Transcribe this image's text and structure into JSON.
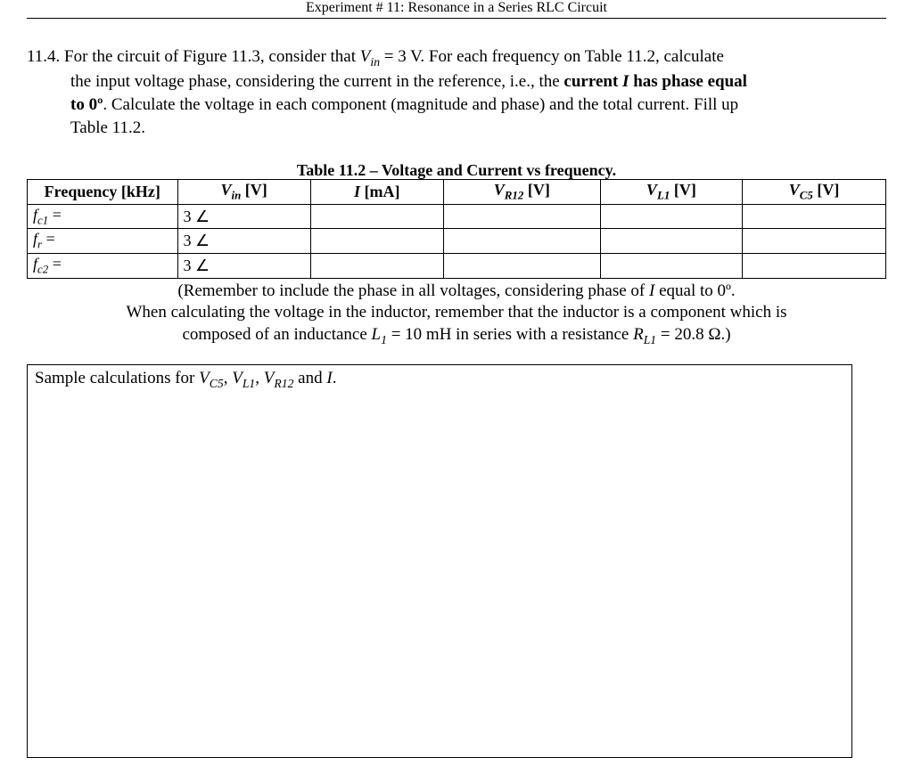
{
  "header": "Experiment # 11: Resonance in a Series RLC Circuit",
  "problem": {
    "number": "11.4.",
    "line1": "For the circuit of Figure 11.3, consider that ",
    "vin_eq": " = 3 V. For each frequency on Table 11.2, calculate",
    "line2": "the input voltage phase, considering the current in the reference, i.e., the ",
    "bold1": "current ",
    "ibold": "I",
    "bold2": " has phase equal",
    "line3a": "to 0º",
    "line3b": ". Calculate the voltage in each component (magnitude and phase) and the total current. Fill up",
    "line4": "Table 11.2."
  },
  "table": {
    "caption": "Table 11.2 – Voltage and Current vs frequency.",
    "headers": {
      "freq": "Frequency [kHz]",
      "vin_pre": "V",
      "vin_sub": "in",
      "vin_post": " [V]",
      "i_pre": "I",
      "i_post": " [mA]",
      "vr12_pre": "V",
      "vr12_sub": "R12",
      "vr12_post": " [V]",
      "vl1_pre": "V",
      "vl1_sub": "L1",
      "vl1_post": " [V]",
      "vc5_pre": "V",
      "vc5_sub": "C5",
      "vc5_post": " [V]"
    },
    "rows": [
      {
        "f_pre": "f",
        "f_sub": "c1",
        "f_post": " =",
        "vin": "3 ∠"
      },
      {
        "f_pre": "f",
        "f_sub": "r",
        "f_post": " =",
        "vin": "3 ∠"
      },
      {
        "f_pre": "f",
        "f_sub": "c2",
        "f_post": " =",
        "vin": "3 ∠"
      }
    ]
  },
  "note": {
    "l1a": "(Remember to include the phase in all voltages, considering phase of ",
    "l1b": " equal to 0º.",
    "l2": "When calculating the voltage in the inductor, remember that the inductor is a component which is",
    "l3a": "composed of an inductance ",
    "l3_L": "L",
    "l3_Lsub": "1",
    "l3b": " = 10 mH in series with a resistance ",
    "l3_R": "R",
    "l3_Rsub": "L1",
    "l3c": " = 20.8 Ω.)"
  },
  "calcbox": {
    "pre": "Sample calculations for ",
    "v1": "V",
    "s1": "C5",
    "c1": ", ",
    "v2": "V",
    "s2": "L1",
    "c2": ", ",
    "v3": "V",
    "s3": "R12",
    "and": " and ",
    "I": "I",
    "dot": "."
  }
}
